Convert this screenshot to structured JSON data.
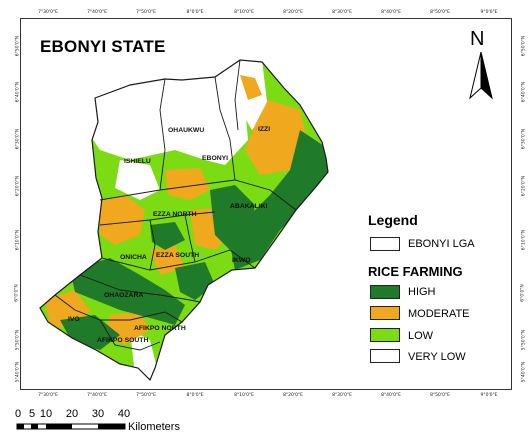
{
  "title": "EBONYI STATE",
  "grid": {
    "longitudes": [
      "7°30'0\"E",
      "7°40'0\"E",
      "7°50'0\"E",
      "8°0'0\"E",
      "8°10'0\"E",
      "8°20'0\"E",
      "8°30'0\"E",
      "8°40'0\"E",
      "8°50'0\"E",
      "9°0'0\"E"
    ],
    "latitudes": [
      "6°50'0\"N",
      "6°40'0\"N",
      "6°30'0\"N",
      "6°20'0\"N",
      "6°10'0\"N",
      "6°0'0\"N",
      "5°50'0\"N",
      "5°40'0\"N"
    ]
  },
  "lgas": [
    {
      "id": "ohaukwu",
      "name": "OHAUKWU"
    },
    {
      "id": "izzi",
      "name": "IZZI"
    },
    {
      "id": "ishielu",
      "name": "ISHIELU"
    },
    {
      "id": "ebonyi",
      "name": "EBONYI"
    },
    {
      "id": "abakaliki",
      "name": "ABAKALIKI"
    },
    {
      "id": "ezza-north",
      "name": "EZZA NORTH"
    },
    {
      "id": "onicha",
      "name": "ONICHA"
    },
    {
      "id": "ezza-south",
      "name": "EZZA SOUTH"
    },
    {
      "id": "ikwo",
      "name": "IKWO"
    },
    {
      "id": "ohaozara",
      "name": "OHAOZARA"
    },
    {
      "id": "ivo",
      "name": "IVO"
    },
    {
      "id": "afikpo-north",
      "name": "AFIKPO NORTH"
    },
    {
      "id": "afikpo-south",
      "name": "AFIKPO SOUTH"
    }
  ],
  "legend": {
    "title": "Legend",
    "boundary_label": "EBONYI LGA",
    "section_title": "RICE FARMING",
    "classes": [
      {
        "label": "HIGH",
        "color": "#1f7a2a"
      },
      {
        "label": "MODERATE",
        "color": "#f0a81e"
      },
      {
        "label": "LOW",
        "color": "#7cdc14"
      },
      {
        "label": "VERY LOW",
        "color": "#ffffff"
      }
    ]
  },
  "north_arrow": {
    "letter": "N"
  },
  "scale_bar": {
    "ticks": [
      "0",
      "5",
      "10",
      "20",
      "30",
      "40"
    ],
    "unit": "Kilometers"
  },
  "colors": {
    "high": "#1f7a2a",
    "moderate": "#f0a81e",
    "low": "#7cdc14",
    "very_low": "#ffffff",
    "boundary": "#1a1a1a"
  }
}
